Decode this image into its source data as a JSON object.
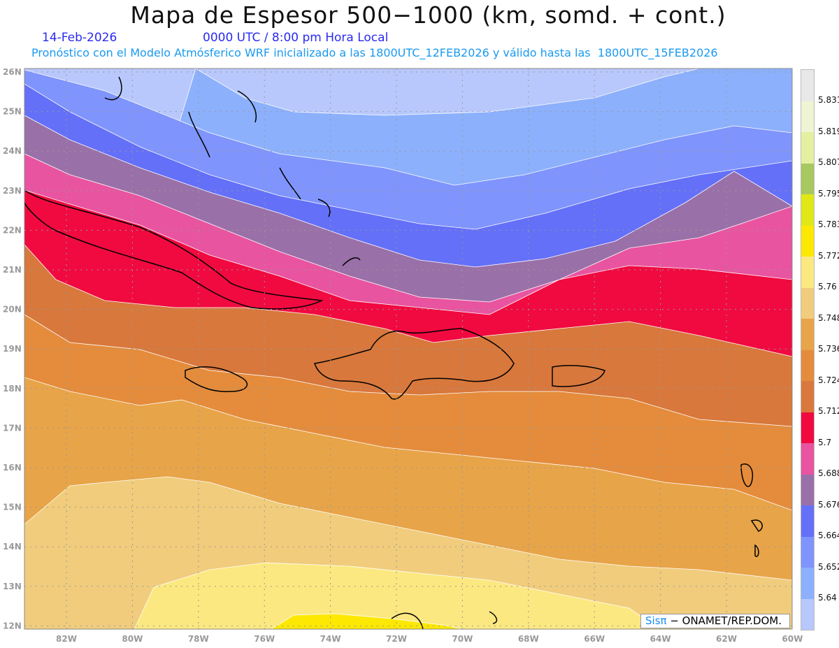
{
  "header": {
    "title": "Mapa de Espesor 500−1000 (km, somd. + cont.)",
    "date": "14-Feb-2026",
    "time": "0000 UTC / 8:00 pm Hora Local",
    "subtitle": "Pronóstico con el Modelo Atmósferico WRF inicializado a las 1800UTC_12FEB2026 y válido hasta las  1800UTC_15FEB2026"
  },
  "map": {
    "lon_labels": [
      "82W",
      "80W",
      "78W",
      "76W",
      "74W",
      "72W",
      "70W",
      "68W",
      "66W",
      "64W",
      "62W",
      "60W"
    ],
    "lat_labels": [
      "26N",
      "25N",
      "24N",
      "23N",
      "22N",
      "21N",
      "20N",
      "19N",
      "18N",
      "17N",
      "16N",
      "15N",
      "14N",
      "13N",
      "12N"
    ]
  },
  "colorbar": {
    "labels": [
      "5.831",
      "5.819",
      "5.807",
      "5.795",
      "5.783",
      "5.772",
      "5.76",
      "5.748",
      "5.736",
      "5.724",
      "5.712",
      "5.7",
      "5.688",
      "5.676",
      "5.664",
      "5.652",
      "5.64"
    ],
    "colors": [
      "#e8e8e8",
      "#eef4d4",
      "#e4f0a0",
      "#a8c860",
      "#e0e818",
      "#fce800",
      "#fce880",
      "#f0cc7c",
      "#e8a448",
      "#e48c3c",
      "#d8783c",
      "#f00a40",
      "#e854a0",
      "#9a70a8",
      "#6470f8",
      "#7f94fc",
      "#8cb0fc",
      "#b8c8fc"
    ]
  },
  "logo": {
    "brand": "Sisπ",
    "text": " − ONAMET/REP.DOM."
  }
}
